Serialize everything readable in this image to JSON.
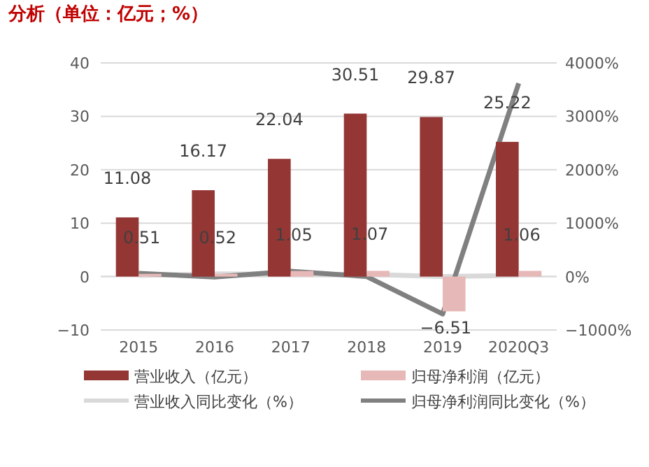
{
  "chart_data": {
    "type": "bar",
    "title": "分析（单位：亿元；%）",
    "categories": [
      "2015",
      "2016",
      "2017",
      "2018",
      "2019",
      "2020Q3"
    ],
    "series": [
      {
        "name": "营业收入（亿元）",
        "color": "#943634",
        "values": [
          11.08,
          16.17,
          22.04,
          30.51,
          29.87,
          25.22
        ],
        "value_labels": [
          "11.08",
          "16.17",
          "22.04",
          "30.51",
          "29.87",
          "25.22"
        ]
      },
      {
        "name": "归母净利润（亿元）",
        "color": "#e6b8b7",
        "values": [
          0.51,
          0.52,
          1.05,
          1.07,
          -6.51,
          1.06
        ],
        "value_labels": [
          "0.51",
          "0.52",
          "1.05",
          "1.07",
          "−6.51",
          "1.06"
        ]
      },
      {
        "name": "营业收入同比变化（%）",
        "type": "line",
        "axis": "y2",
        "color": "#d9d9d9",
        "values": [
          20,
          50,
          40,
          40,
          0,
          20
        ]
      },
      {
        "name": "归母净利润同比变化（%）",
        "type": "line",
        "axis": "y2",
        "color": "#808080",
        "values": [
          60,
          -10,
          100,
          0,
          -700,
          3620
        ]
      }
    ],
    "ylim": [
      -10,
      40
    ],
    "yticks": [
      {
        "value": -10,
        "label": "−10"
      },
      0,
      10,
      20,
      30,
      40
    ],
    "y2lim": [
      -1000,
      4000
    ],
    "y2ticks": [
      {
        "value": -1000,
        "label": "−1000%"
      },
      {
        "value": 0,
        "label": "0%"
      },
      {
        "value": 1000,
        "label": "1000%"
      },
      {
        "value": 2000,
        "label": "2000%"
      },
      {
        "value": 3000,
        "label": "3000%"
      },
      {
        "value": 4000,
        "label": "4000%"
      }
    ],
    "grid": "y",
    "legend": "bottom",
    "line_style": "solid",
    "marker": "none"
  }
}
